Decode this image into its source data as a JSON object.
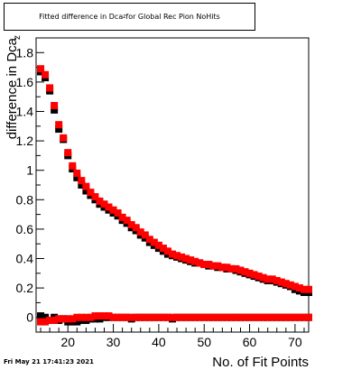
{
  "title_main": "Fitted difference in Dca",
  "title_sub": "z",
  "title_rest": " for Global Rec Pion NoHits",
  "footer": "Fri May 21 17:41:23 2021",
  "chart_data": {
    "type": "scatter",
    "xlabel": "No. of Fit Points",
    "ylabel": "difference in Dca",
    "xlim": [
      13,
      73
    ],
    "ylim": [
      -0.1,
      1.9
    ],
    "xticks": [
      20,
      30,
      40,
      50,
      60,
      70
    ],
    "yticks": [
      0,
      0.2,
      0.4,
      0.6,
      0.8,
      1,
      1.2,
      1.4,
      1.6,
      1.8
    ],
    "xtick_labels": [
      "20",
      "30",
      "40",
      "50",
      "60",
      "70"
    ],
    "ytick_labels": [
      "0",
      "0.2",
      "0.4",
      "0.6",
      "0.8",
      "1",
      "1.2",
      "1.4",
      "1.6",
      "1.8"
    ],
    "colors": {
      "series_black": "#000000",
      "series_red": "#ff0000"
    },
    "series": [
      {
        "values_mean_upper": [
          [
            14,
            1.67
          ],
          [
            15,
            1.63
          ],
          [
            16,
            1.54
          ],
          [
            17,
            1.41
          ],
          [
            18,
            1.28
          ],
          [
            19,
            1.21
          ],
          [
            20,
            1.1
          ],
          [
            21,
            1.01
          ],
          [
            22,
            0.95
          ],
          [
            23,
            0.9
          ],
          [
            24,
            0.86
          ],
          [
            25,
            0.83
          ],
          [
            26,
            0.8
          ],
          [
            27,
            0.77
          ],
          [
            28,
            0.75
          ],
          [
            29,
            0.73
          ],
          [
            30,
            0.71
          ],
          [
            31,
            0.69
          ],
          [
            32,
            0.66
          ],
          [
            33,
            0.64
          ],
          [
            34,
            0.61
          ],
          [
            35,
            0.59
          ],
          [
            36,
            0.56
          ],
          [
            37,
            0.54
          ],
          [
            38,
            0.51
          ],
          [
            39,
            0.49
          ],
          [
            40,
            0.47
          ],
          [
            41,
            0.45
          ],
          [
            42,
            0.43
          ],
          [
            43,
            0.42
          ],
          [
            44,
            0.41
          ],
          [
            45,
            0.4
          ],
          [
            46,
            0.39
          ],
          [
            47,
            0.38
          ],
          [
            48,
            0.37
          ],
          [
            49,
            0.37
          ],
          [
            50,
            0.36
          ],
          [
            51,
            0.35
          ],
          [
            52,
            0.35
          ],
          [
            53,
            0.34
          ],
          [
            54,
            0.34
          ],
          [
            55,
            0.33
          ],
          [
            56,
            0.33
          ],
          [
            57,
            0.32
          ],
          [
            58,
            0.31
          ],
          [
            59,
            0.3
          ],
          [
            60,
            0.29
          ],
          [
            61,
            0.28
          ],
          [
            62,
            0.27
          ],
          [
            63,
            0.26
          ],
          [
            64,
            0.25
          ],
          [
            65,
            0.25
          ],
          [
            66,
            0.24
          ],
          [
            67,
            0.23
          ],
          [
            68,
            0.22
          ],
          [
            69,
            0.21
          ],
          [
            70,
            0.19
          ],
          [
            71,
            0.18
          ],
          [
            72,
            0.17
          ],
          [
            73,
            0.17
          ]
        ],
        "values_zero": [
          [
            14,
            0.01
          ],
          [
            15,
            0.0
          ],
          [
            16,
            -0.02
          ],
          [
            17,
            0.0
          ],
          [
            18,
            -0.02
          ],
          [
            19,
            -0.01
          ],
          [
            20,
            -0.03
          ],
          [
            21,
            -0.03
          ],
          [
            22,
            -0.03
          ],
          [
            23,
            -0.02
          ],
          [
            24,
            -0.02
          ],
          [
            25,
            -0.01
          ],
          [
            26,
            -0.01
          ],
          [
            27,
            -0.01
          ],
          [
            28,
            0.0
          ],
          [
            29,
            0.0
          ],
          [
            30,
            0.0
          ],
          [
            31,
            0.0
          ],
          [
            32,
            0.0
          ],
          [
            33,
            0.0
          ],
          [
            34,
            -0.01
          ],
          [
            35,
            0.0
          ],
          [
            36,
            0.0
          ],
          [
            37,
            0.0
          ],
          [
            38,
            0.0
          ],
          [
            39,
            0.0
          ],
          [
            40,
            0.0
          ],
          [
            41,
            0.0
          ],
          [
            42,
            0.0
          ],
          [
            43,
            -0.01
          ],
          [
            44,
            0.0
          ],
          [
            45,
            0.0
          ],
          [
            46,
            0.0
          ],
          [
            47,
            0.0
          ],
          [
            48,
            0.0
          ],
          [
            49,
            0.0
          ],
          [
            50,
            0.0
          ],
          [
            51,
            0.0
          ],
          [
            52,
            0.0
          ],
          [
            53,
            0.0
          ],
          [
            54,
            0.0
          ],
          [
            55,
            0.0
          ],
          [
            56,
            0.0
          ],
          [
            57,
            0.0
          ],
          [
            58,
            0.0
          ],
          [
            59,
            0.0
          ],
          [
            60,
            0.0
          ],
          [
            61,
            0.0
          ],
          [
            62,
            0.0
          ],
          [
            63,
            0.0
          ],
          [
            64,
            0.0
          ],
          [
            65,
            0.0
          ],
          [
            66,
            0.0
          ],
          [
            67,
            0.0
          ],
          [
            68,
            0.0
          ],
          [
            69,
            0.0
          ],
          [
            70,
            0.0
          ],
          [
            71,
            0.0
          ],
          [
            72,
            0.0
          ],
          [
            73,
            0.0
          ]
        ]
      },
      {
        "values_mean_upper": [
          [
            14,
            1.69
          ],
          [
            15,
            1.65
          ],
          [
            16,
            1.56
          ],
          [
            17,
            1.44
          ],
          [
            18,
            1.31
          ],
          [
            19,
            1.22
          ],
          [
            20,
            1.12
          ],
          [
            21,
            1.03
          ],
          [
            22,
            0.98
          ],
          [
            23,
            0.93
          ],
          [
            24,
            0.89
          ],
          [
            25,
            0.85
          ],
          [
            26,
            0.82
          ],
          [
            27,
            0.79
          ],
          [
            28,
            0.77
          ],
          [
            29,
            0.75
          ],
          [
            30,
            0.73
          ],
          [
            31,
            0.71
          ],
          [
            32,
            0.68
          ],
          [
            33,
            0.66
          ],
          [
            34,
            0.63
          ],
          [
            35,
            0.61
          ],
          [
            36,
            0.58
          ],
          [
            37,
            0.56
          ],
          [
            38,
            0.53
          ],
          [
            39,
            0.51
          ],
          [
            40,
            0.49
          ],
          [
            41,
            0.47
          ],
          [
            42,
            0.45
          ],
          [
            43,
            0.43
          ],
          [
            44,
            0.42
          ],
          [
            45,
            0.41
          ],
          [
            46,
            0.4
          ],
          [
            47,
            0.39
          ],
          [
            48,
            0.38
          ],
          [
            49,
            0.37
          ],
          [
            50,
            0.36
          ],
          [
            51,
            0.36
          ],
          [
            52,
            0.35
          ],
          [
            53,
            0.35
          ],
          [
            54,
            0.34
          ],
          [
            55,
            0.34
          ],
          [
            56,
            0.33
          ],
          [
            57,
            0.33
          ],
          [
            58,
            0.32
          ],
          [
            59,
            0.31
          ],
          [
            60,
            0.3
          ],
          [
            61,
            0.29
          ],
          [
            62,
            0.28
          ],
          [
            63,
            0.27
          ],
          [
            64,
            0.26
          ],
          [
            65,
            0.26
          ],
          [
            66,
            0.25
          ],
          [
            67,
            0.24
          ],
          [
            68,
            0.23
          ],
          [
            69,
            0.22
          ],
          [
            70,
            0.21
          ],
          [
            71,
            0.2
          ],
          [
            72,
            0.19
          ],
          [
            73,
            0.19
          ]
        ],
        "values_zero": [
          [
            14,
            -0.03
          ],
          [
            15,
            -0.03
          ],
          [
            16,
            -0.02
          ],
          [
            17,
            -0.02
          ],
          [
            18,
            -0.01
          ],
          [
            19,
            -0.01
          ],
          [
            20,
            -0.01
          ],
          [
            21,
            -0.01
          ],
          [
            22,
            0.0
          ],
          [
            23,
            0.0
          ],
          [
            24,
            0.0
          ],
          [
            25,
            0.0
          ],
          [
            26,
            0.01
          ],
          [
            27,
            0.01
          ],
          [
            28,
            0.01
          ],
          [
            29,
            0.01
          ],
          [
            30,
            0.0
          ],
          [
            31,
            0.0
          ],
          [
            32,
            0.0
          ],
          [
            33,
            0.0
          ],
          [
            34,
            0.0
          ],
          [
            35,
            0.0
          ],
          [
            36,
            0.0
          ],
          [
            37,
            0.0
          ],
          [
            38,
            0.0
          ],
          [
            39,
            0.0
          ],
          [
            40,
            0.0
          ],
          [
            41,
            0.0
          ],
          [
            42,
            0.0
          ],
          [
            43,
            0.0
          ],
          [
            44,
            0.0
          ],
          [
            45,
            0.0
          ],
          [
            46,
            0.0
          ],
          [
            47,
            0.0
          ],
          [
            48,
            0.0
          ],
          [
            49,
            0.0
          ],
          [
            50,
            0.0
          ],
          [
            51,
            0.0
          ],
          [
            52,
            0.0
          ],
          [
            53,
            0.0
          ],
          [
            54,
            0.0
          ],
          [
            55,
            0.0
          ],
          [
            56,
            0.0
          ],
          [
            57,
            0.0
          ],
          [
            58,
            0.0
          ],
          [
            59,
            0.0
          ],
          [
            60,
            0.0
          ],
          [
            61,
            0.0
          ],
          [
            62,
            0.0
          ],
          [
            63,
            0.0
          ],
          [
            64,
            0.0
          ],
          [
            65,
            0.0
          ],
          [
            66,
            0.0
          ],
          [
            67,
            0.0
          ],
          [
            68,
            0.0
          ],
          [
            69,
            0.0
          ],
          [
            70,
            0.0
          ],
          [
            71,
            0.0
          ],
          [
            72,
            0.0
          ],
          [
            73,
            0.0
          ]
        ]
      }
    ]
  }
}
